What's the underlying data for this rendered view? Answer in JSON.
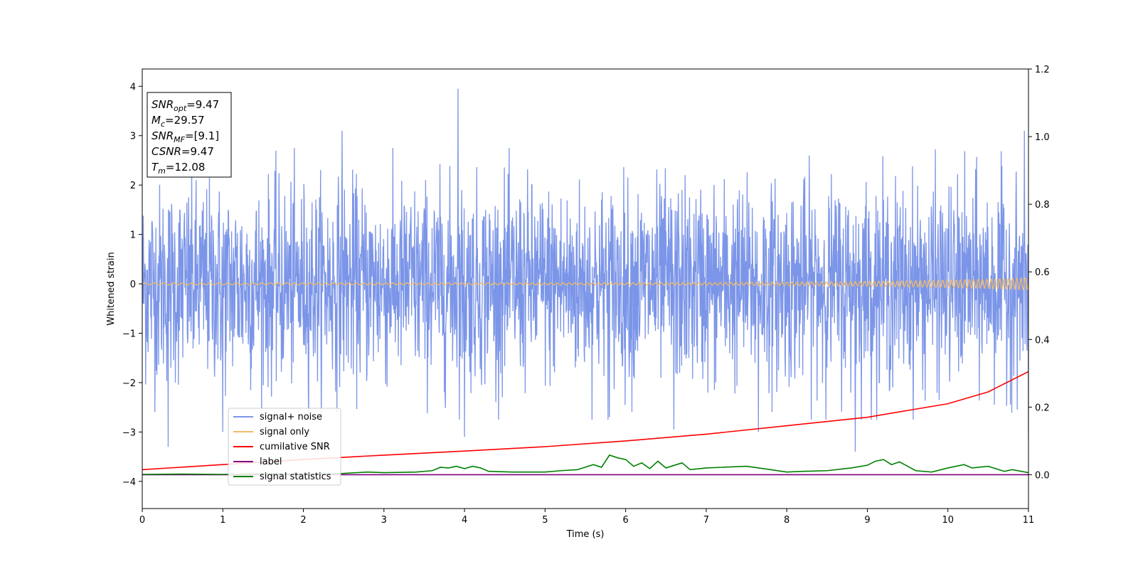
{
  "chart_data": {
    "type": "line",
    "xlabel": "Time (s)",
    "ylabel": "Whitened strain",
    "xlim": [
      0,
      11
    ],
    "ylim": [
      -4.55,
      4.35
    ],
    "y2lim": [
      -0.1,
      1.2
    ],
    "xticks": [
      0,
      1,
      2,
      3,
      4,
      5,
      6,
      7,
      8,
      9,
      10,
      11
    ],
    "yticks": [
      -4,
      -3,
      -2,
      -1,
      0,
      1,
      2,
      3,
      4
    ],
    "y2ticks": [
      0.0,
      0.2,
      0.4,
      0.6,
      0.8,
      1.0,
      1.2
    ],
    "legend_position": "lower-left",
    "grid": false,
    "info_box": [
      {
        "var": "SNR",
        "sub": "opt",
        "value": "=9.47"
      },
      {
        "var": "M",
        "sub": "c",
        "value": "=29.57"
      },
      {
        "var": "SNR",
        "sub": "MF",
        "value": "=[9.1]"
      },
      {
        "var": "CSNR",
        "sub": "",
        "value": "=9.47"
      },
      {
        "var": "T",
        "sub": "m",
        "value": "=12.08"
      }
    ],
    "series": [
      {
        "name": "signal+ noise",
        "axis": "left",
        "color": "#7b95e8",
        "kind": "noise",
        "noise_band": [
          -1.8,
          1.8
        ],
        "notable_peaks": [
          {
            "x": 0.32,
            "y": -3.3
          },
          {
            "x": 1.0,
            "y": -3.0
          },
          {
            "x": 2.48,
            "y": 3.1
          },
          {
            "x": 3.92,
            "y": 3.95
          },
          {
            "x": 4.0,
            "y": -3.1
          },
          {
            "x": 5.8,
            "y": -2.7
          },
          {
            "x": 6.6,
            "y": -2.95
          },
          {
            "x": 7.65,
            "y": -3.0
          },
          {
            "x": 8.85,
            "y": -3.4
          },
          {
            "x": 10.95,
            "y": 3.1
          },
          {
            "x": 11.0,
            "y": -3.15
          }
        ]
      },
      {
        "name": "signal only",
        "axis": "left",
        "color": "#f2bb66",
        "kind": "chirp",
        "amplitude_start": 0.02,
        "amplitude_end": 0.12,
        "cycles": 150
      },
      {
        "name": "cumilative SNR",
        "axis": "right",
        "color": "#ff0000",
        "x": [
          0,
          1,
          2,
          3,
          4,
          5,
          6,
          7,
          8,
          9,
          9.5,
          10,
          10.5,
          11
        ],
        "values": [
          0.015,
          0.03,
          0.045,
          0.058,
          0.07,
          0.083,
          0.1,
          0.12,
          0.145,
          0.17,
          0.19,
          0.21,
          0.245,
          0.305
        ]
      },
      {
        "name": "label",
        "axis": "right",
        "color": "#800080",
        "x": [
          0,
          11
        ],
        "values": [
          0.0,
          0.0
        ]
      },
      {
        "name": "signal statistics",
        "axis": "right",
        "color": "#008000",
        "x": [
          0,
          0.5,
          1,
          1.5,
          2,
          2.5,
          2.8,
          3,
          3.4,
          3.6,
          3.7,
          3.8,
          3.9,
          4.0,
          4.1,
          4.2,
          4.3,
          4.6,
          5.0,
          5.2,
          5.4,
          5.6,
          5.7,
          5.8,
          5.9,
          6.0,
          6.1,
          6.2,
          6.3,
          6.4,
          6.5,
          6.7,
          6.8,
          7.0,
          7.2,
          7.5,
          7.8,
          8.0,
          8.2,
          8.5,
          8.8,
          9.0,
          9.1,
          9.2,
          9.3,
          9.4,
          9.6,
          9.8,
          10.0,
          10.2,
          10.3,
          10.5,
          10.7,
          10.8,
          11.0
        ],
        "values": [
          0.001,
          0.002,
          0.001,
          0.003,
          0.002,
          0.004,
          0.008,
          0.006,
          0.008,
          0.012,
          0.022,
          0.02,
          0.025,
          0.018,
          0.025,
          0.02,
          0.01,
          0.008,
          0.008,
          0.012,
          0.015,
          0.03,
          0.022,
          0.058,
          0.05,
          0.045,
          0.025,
          0.035,
          0.018,
          0.04,
          0.02,
          0.035,
          0.015,
          0.02,
          0.022,
          0.025,
          0.015,
          0.008,
          0.01,
          0.012,
          0.02,
          0.028,
          0.04,
          0.045,
          0.03,
          0.038,
          0.012,
          0.008,
          0.02,
          0.03,
          0.02,
          0.025,
          0.01,
          0.015,
          0.006
        ]
      }
    ]
  }
}
